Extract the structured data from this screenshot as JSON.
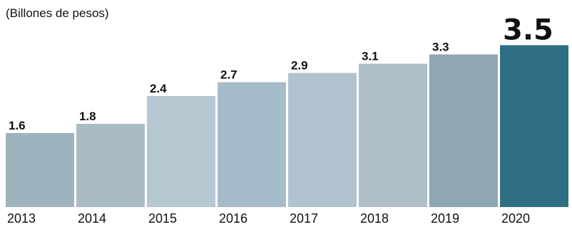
{
  "chart_data": {
    "type": "bar",
    "subtitle": "(Billones de pesos)",
    "categories": [
      "2013",
      "2014",
      "2015",
      "2016",
      "2017",
      "2018",
      "2019",
      "2020"
    ],
    "values": [
      1.6,
      1.8,
      2.4,
      2.7,
      2.9,
      3.1,
      3.3,
      3.5
    ],
    "colors": [
      "#9fb3bf",
      "#a9bcc6",
      "#b5c7d1",
      "#a6bccb",
      "#b0c3cf",
      "#aebfca",
      "#8fa6b3",
      "#2f6f84"
    ]
  }
}
